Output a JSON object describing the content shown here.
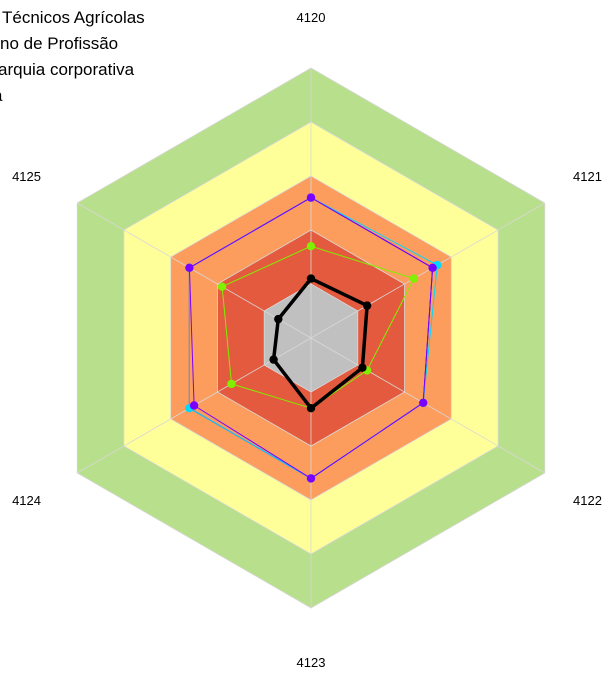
{
  "legend": {
    "items": [
      "Técnicos Agrícolas",
      "no de Profissão",
      "arquia corporativa",
      "a"
    ]
  },
  "chart_data": {
    "type": "radar",
    "axes": [
      "4120",
      "4121",
      "4122",
      "4123",
      "4124",
      "4125"
    ],
    "rmax": 5,
    "bands": [
      {
        "from": 4,
        "to": 5,
        "color": "#b8df8c"
      },
      {
        "from": 3,
        "to": 4,
        "color": "#ffff99"
      },
      {
        "from": 2,
        "to": 3,
        "color": "#fc9d5e"
      },
      {
        "from": 1,
        "to": 2,
        "color": "#e45a3e"
      },
      {
        "from": 0,
        "to": 1,
        "color": "#c0c0c0"
      }
    ],
    "grid": true,
    "series": [
      {
        "color": "#0000ff",
        "values": [
          2.6,
          2.6,
          2.4,
          2.6,
          2.6,
          2.6
        ],
        "points": false
      },
      {
        "color": "#00d8ff",
        "values": [
          2.6,
          2.7,
          2.4,
          2.6,
          2.6,
          2.6
        ],
        "points": true
      },
      {
        "color": "#7a00ff",
        "values": [
          2.6,
          2.6,
          2.4,
          2.6,
          2.5,
          2.6
        ],
        "points": true
      },
      {
        "color": "#80ef00",
        "values": [
          1.7,
          2.2,
          1.2,
          1.3,
          1.7,
          1.9
        ],
        "points": true
      },
      {
        "color": "#000000",
        "values": [
          1.1,
          1.2,
          1.1,
          1.3,
          0.8,
          0.7
        ],
        "points": true,
        "bold": true
      }
    ]
  }
}
